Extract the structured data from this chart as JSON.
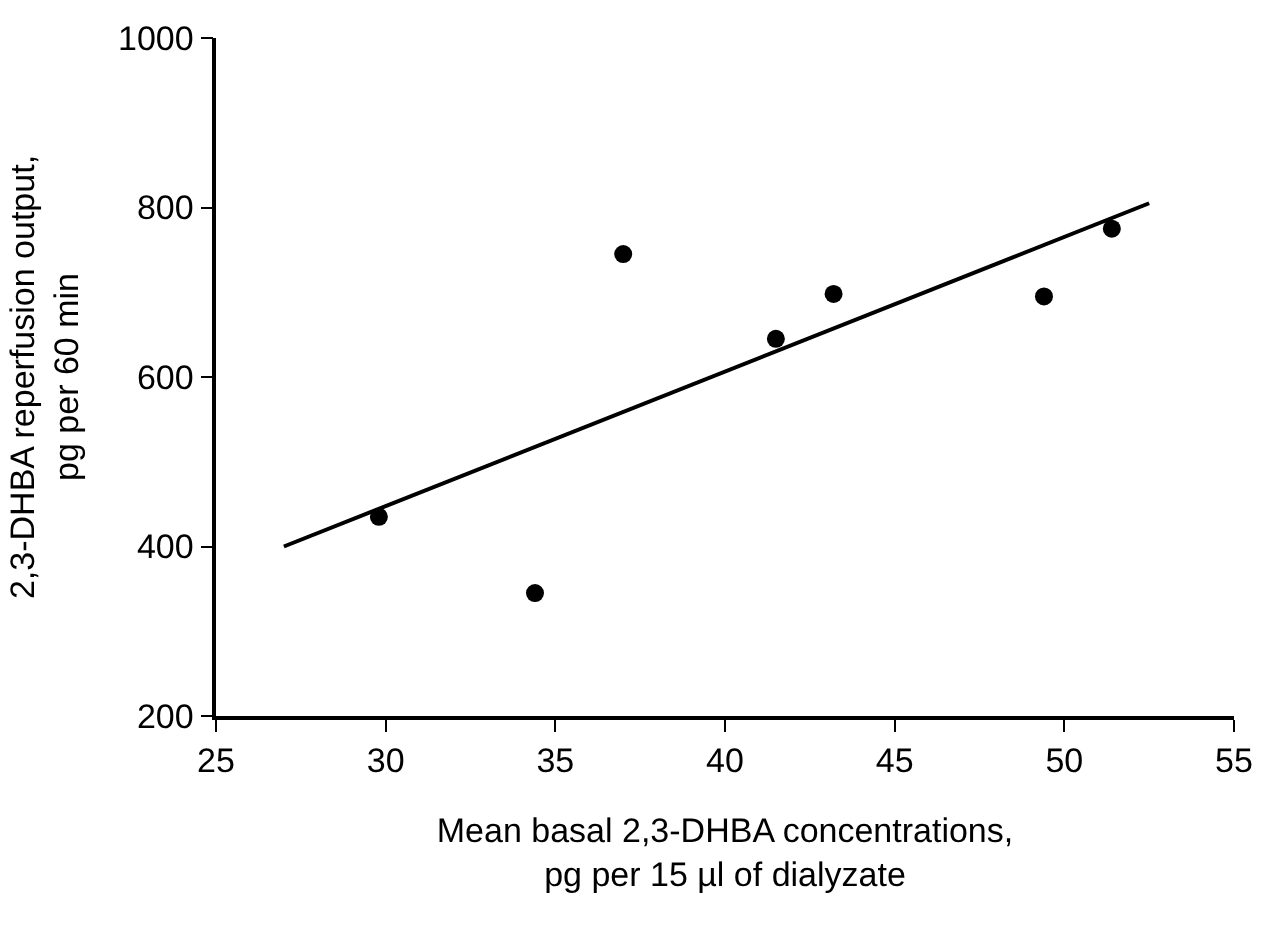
{
  "chart_data": {
    "type": "scatter",
    "xlabel": "Mean basal 2,3-DHBA concentrations,\npg per 15 µl of dialyzate",
    "ylabel": "2,3-DHBA reperfusion output,\npg per 60 min",
    "xlim": [
      25,
      55
    ],
    "xticks": [
      25,
      30,
      35,
      40,
      45,
      50,
      55
    ],
    "ylim": [
      200,
      1000
    ],
    "yticks": [
      200,
      400,
      600,
      800,
      1000
    ],
    "grid": false,
    "series": [
      {
        "color": "#000000",
        "marker": "circle",
        "x": [
          29.8,
          34.4,
          37.0,
          41.5,
          43.2,
          49.4,
          51.4
        ],
        "values": [
          435,
          345,
          745,
          645,
          698,
          695,
          775
        ]
      },
      {
        "type": "line",
        "color": "#000000",
        "marker": "none",
        "x": [
          27,
          52.5
        ],
        "values": [
          400,
          805
        ]
      }
    ]
  }
}
